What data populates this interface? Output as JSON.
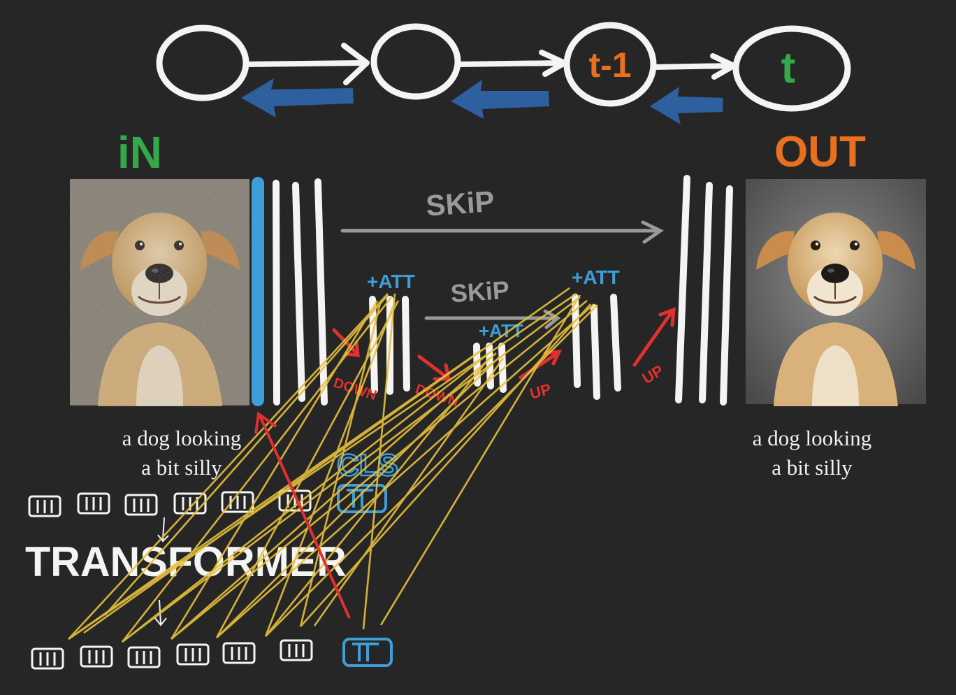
{
  "timeline": {
    "nodes": [
      {
        "label": ""
      },
      {
        "label": ""
      },
      {
        "label": "t-1",
        "color": "#e8701e"
      },
      {
        "label": "t",
        "color": "#35a84a"
      }
    ]
  },
  "labels": {
    "in": "iN",
    "out": "OUT",
    "skip_outer": "SKiP",
    "skip_inner": "SKiP",
    "att_1": "+ATT",
    "att_2": "+ATT",
    "att_3": "+ATT",
    "down_1": "DOWN",
    "down_2": "DOWN",
    "up_1": "UP",
    "up_2": "UP",
    "cls": "CLS",
    "transformer": "TRANSFORMER"
  },
  "captions": {
    "input": "a dog looking\na bit silly",
    "output": "a dog looking\na bit silly"
  },
  "images": {
    "input": "noisy dog photo",
    "output": "clean dog photo"
  },
  "colors": {
    "background": "#262626",
    "white": "#f4f4f4",
    "blue_arrow": "#2e5f9e",
    "light_blue": "#3e9ed8",
    "orange": "#e8701e",
    "green": "#35a84a",
    "red": "#e03030",
    "yellow": "#e7c13c",
    "gray": "#9a9a9a"
  }
}
